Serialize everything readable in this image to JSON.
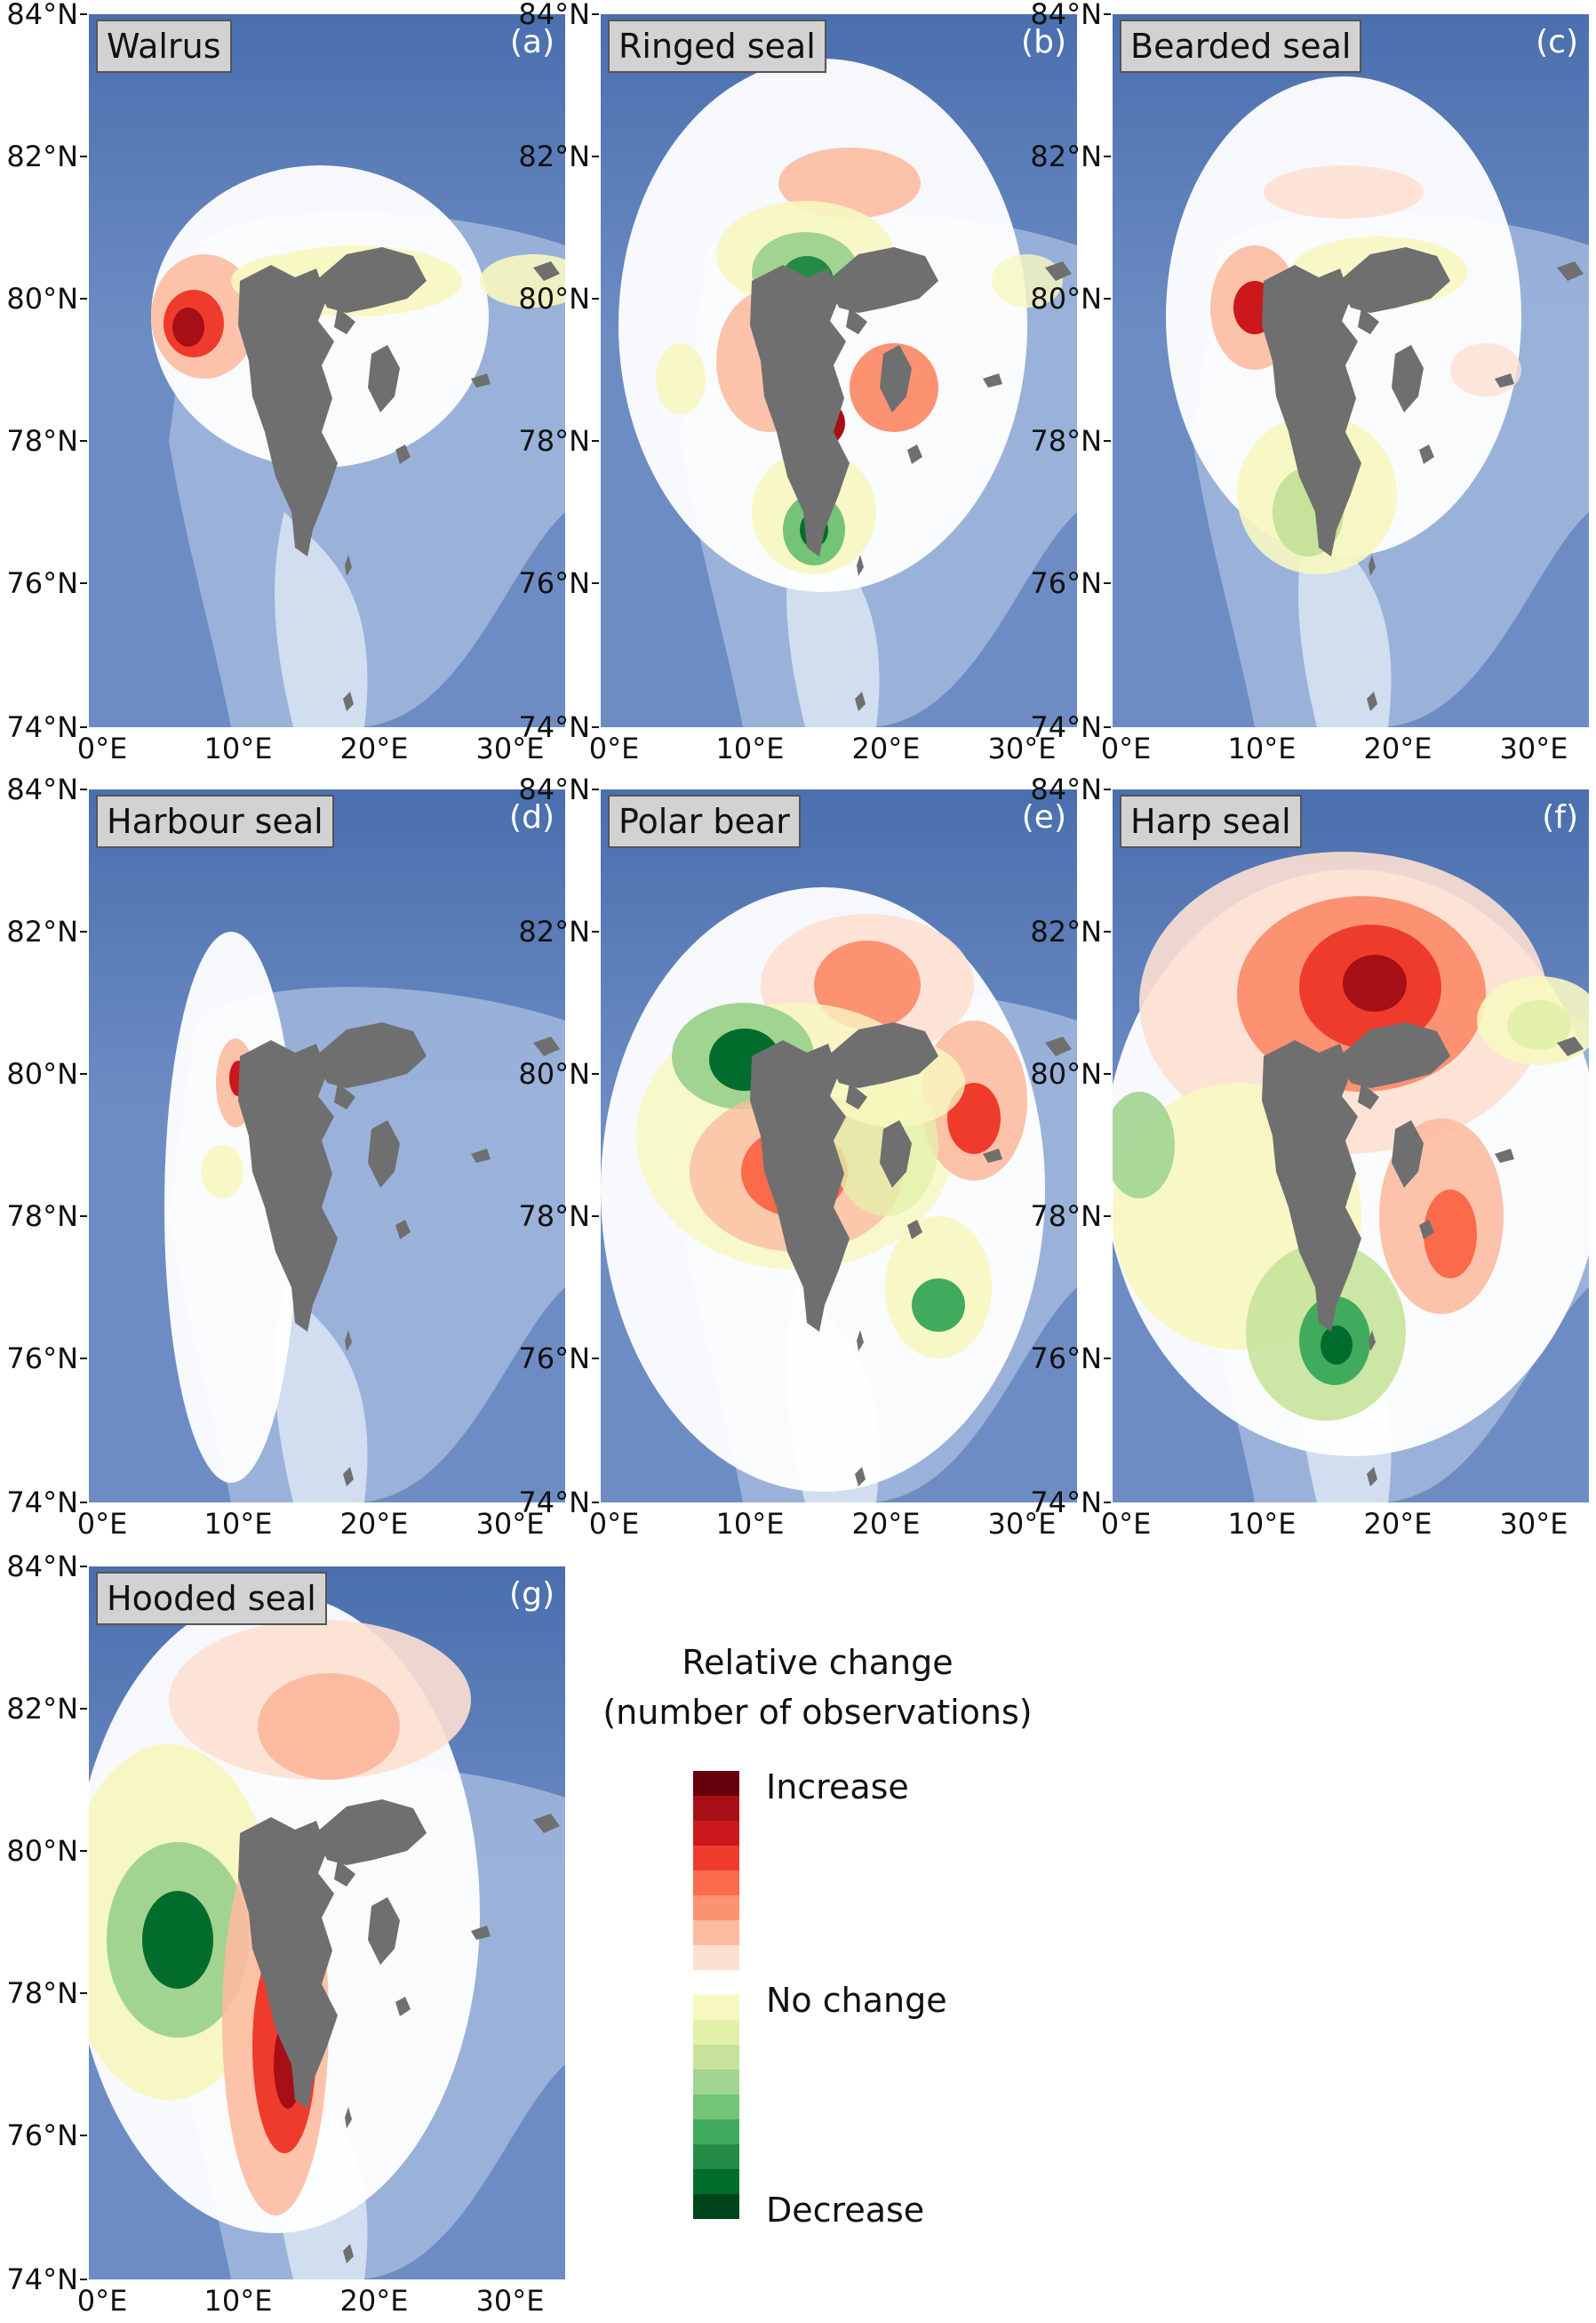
{
  "panels": [
    {
      "key": "a",
      "species": "Walrus",
      "letter": "(a)"
    },
    {
      "key": "b",
      "species": "Ringed seal",
      "letter": "(b)"
    },
    {
      "key": "c",
      "species": "Bearded seal",
      "letter": "(c)"
    },
    {
      "key": "d",
      "species": "Harbour seal",
      "letter": "(d)"
    },
    {
      "key": "e",
      "species": "Polar bear",
      "letter": "(e)"
    },
    {
      "key": "f",
      "species": "Harp seal",
      "letter": "(f)"
    },
    {
      "key": "g",
      "species": "Hooded seal",
      "letter": "(g)"
    }
  ],
  "axes": {
    "lat_ticks": [
      "84°N",
      "82°N",
      "80°N",
      "78°N",
      "76°N",
      "74°N"
    ],
    "lon_ticks": [
      "0°E",
      "10°E",
      "20°E",
      "30°E"
    ]
  },
  "legend": {
    "title_line1": "Relative change",
    "title_line2": "(number of observations)",
    "label_increase": "Increase",
    "label_nochange": "No change",
    "label_decrease": "Decrease",
    "colors": [
      "#67000d",
      "#a50f15",
      "#cb181d",
      "#ef3b2c",
      "#fb6a4a",
      "#fc9272",
      "#fcbba1",
      "#fde0d2",
      "#ffffff",
      "#f7f7c0",
      "#e3f0aa",
      "#c7e39b",
      "#a1d490",
      "#74c476",
      "#41ab5d",
      "#238b45",
      "#006d2c",
      "#00441b"
    ]
  },
  "colors": {
    "ocean_deep": "#4a6fae",
    "ocean_mid": "#6d8cc4",
    "ocean_shallow": "#a9bfe1",
    "land": "#6f6f6f"
  }
}
